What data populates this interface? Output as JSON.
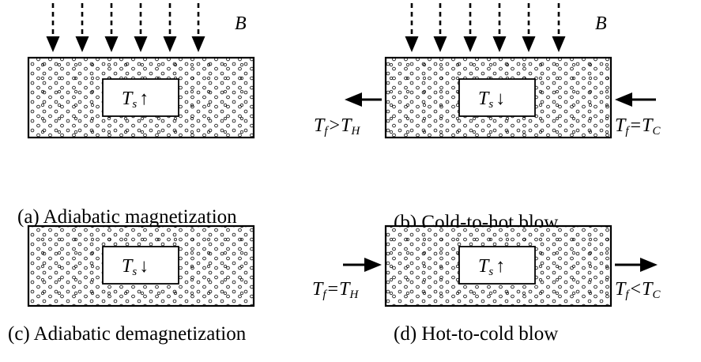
{
  "field_label": "B",
  "panels": [
    {
      "id": "a",
      "caption": "(a) Adiabatic magnetization",
      "field_applied": true,
      "solid_temperature": {
        "symbol": "T",
        "subscript": "s",
        "trend": "↑"
      },
      "flow": null
    },
    {
      "id": "b",
      "caption": "(b) Cold-to-hot blow",
      "field_applied": true,
      "solid_temperature": {
        "symbol": "T",
        "subscript": "s",
        "trend": "↓"
      },
      "flow": {
        "direction": "right-to-left",
        "inlet_side": "right",
        "inlet_label": {
          "lhs": "T",
          "lhs_sub": "f",
          "rel": "=",
          "rhs": "T",
          "rhs_sub": "C"
        },
        "outlet_label": {
          "lhs": "T",
          "lhs_sub": "f",
          "rel": ">",
          "rhs": "T",
          "rhs_sub": "H"
        }
      }
    },
    {
      "id": "c",
      "caption": "(c) Adiabatic demagnetization",
      "field_applied": false,
      "solid_temperature": {
        "symbol": "T",
        "subscript": "s",
        "trend": "↓"
      },
      "flow": null
    },
    {
      "id": "d",
      "caption": "(d) Hot-to-cold blow",
      "field_applied": false,
      "solid_temperature": {
        "symbol": "T",
        "subscript": "s",
        "trend": "↑"
      },
      "flow": {
        "direction": "left-to-right",
        "inlet_side": "left",
        "inlet_label": {
          "lhs": "T",
          "lhs_sub": "f",
          "rel": "=",
          "rhs": "T",
          "rhs_sub": "H"
        },
        "outlet_label": {
          "lhs": "T",
          "lhs_sub": "f",
          "rel": "<",
          "rhs": "T",
          "rhs_sub": "C"
        }
      }
    }
  ]
}
